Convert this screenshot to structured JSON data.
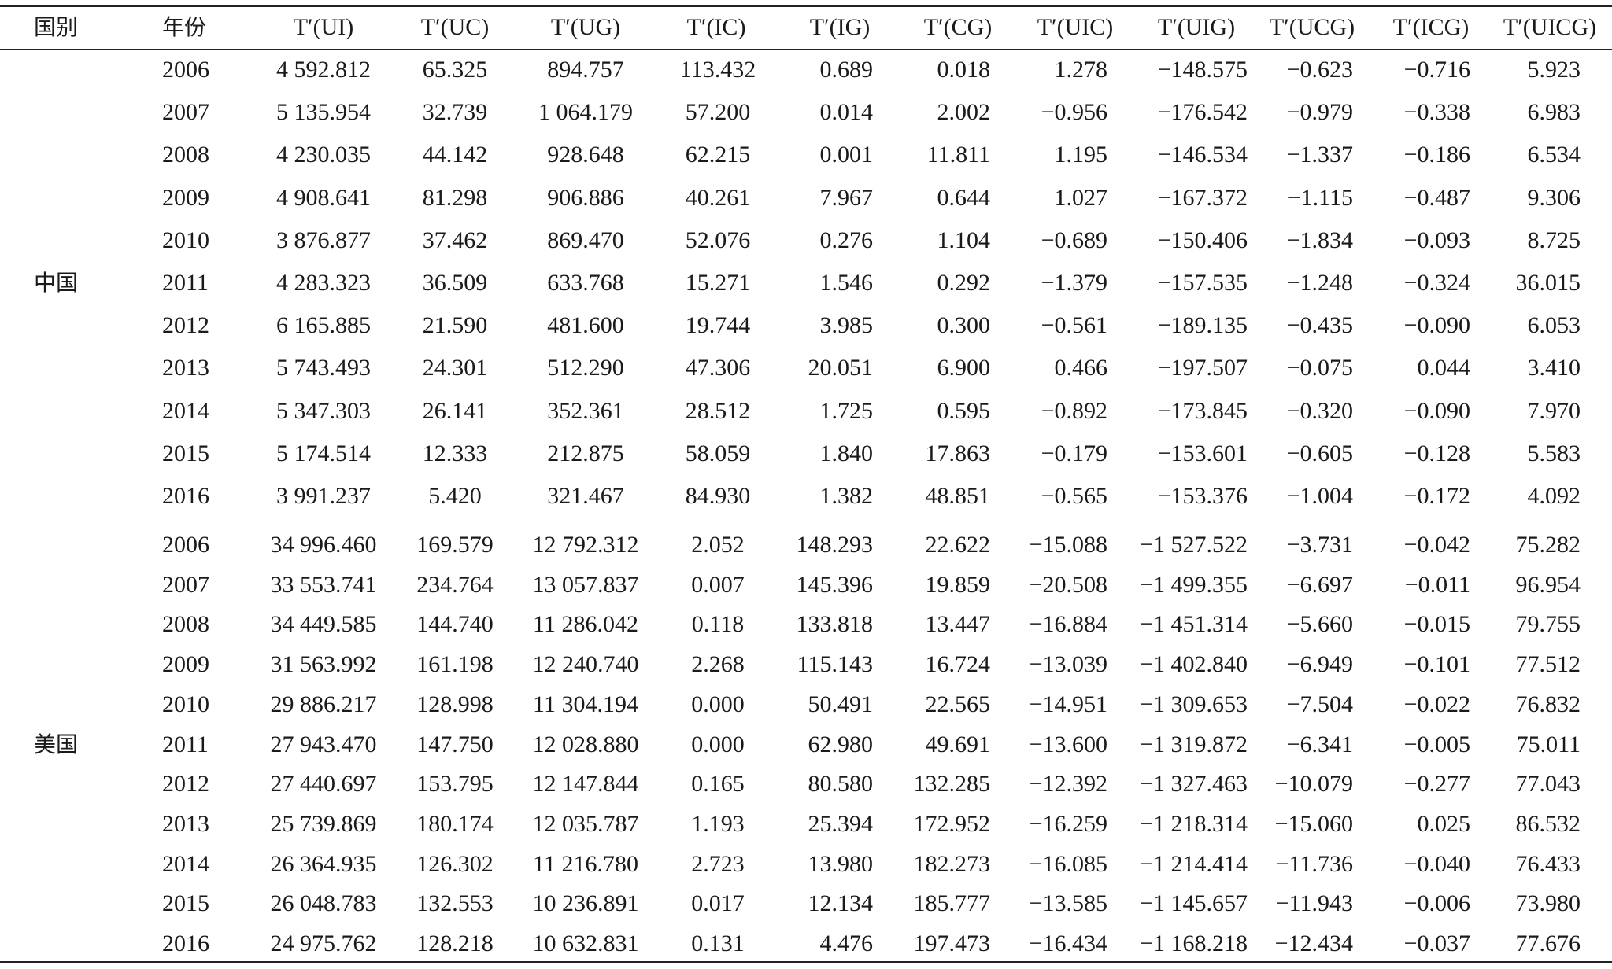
{
  "table": {
    "headers": [
      "国别",
      "年份",
      "T′(UI)",
      "T′(UC)",
      "T′(UG)",
      "T′(IC)",
      "T′(IG)",
      "T′(CG)",
      "T′(UIC)",
      "T′(UIG)",
      "T′(UCG)",
      "T′(ICG)",
      "T′(UICG)"
    ],
    "groups": [
      {
        "country": "中国",
        "rows": [
          [
            "2006",
            "4 592.812",
            "65.325",
            "894.757",
            "113.432",
            "0.689",
            "0.018",
            "1.278",
            "−148.575",
            "−0.623",
            "−0.716",
            "5.923"
          ],
          [
            "2007",
            "5 135.954",
            "32.739",
            "1 064.179",
            "57.200",
            "0.014",
            "2.002",
            "−0.956",
            "−176.542",
            "−0.979",
            "−0.338",
            "6.983"
          ],
          [
            "2008",
            "4 230.035",
            "44.142",
            "928.648",
            "62.215",
            "0.001",
            "11.811",
            "1.195",
            "−146.534",
            "−1.337",
            "−0.186",
            "6.534"
          ],
          [
            "2009",
            "4 908.641",
            "81.298",
            "906.886",
            "40.261",
            "7.967",
            "0.644",
            "1.027",
            "−167.372",
            "−1.115",
            "−0.487",
            "9.306"
          ],
          [
            "2010",
            "3 876.877",
            "37.462",
            "869.470",
            "52.076",
            "0.276",
            "1.104",
            "−0.689",
            "−150.406",
            "−1.834",
            "−0.093",
            "8.725"
          ],
          [
            "2011",
            "4 283.323",
            "36.509",
            "633.768",
            "15.271",
            "1.546",
            "0.292",
            "−1.379",
            "−157.535",
            "−1.248",
            "−0.324",
            "36.015"
          ],
          [
            "2012",
            "6 165.885",
            "21.590",
            "481.600",
            "19.744",
            "3.985",
            "0.300",
            "−0.561",
            "−189.135",
            "−0.435",
            "−0.090",
            "6.053"
          ],
          [
            "2013",
            "5 743.493",
            "24.301",
            "512.290",
            "47.306",
            "20.051",
            "6.900",
            "0.466",
            "−197.507",
            "−0.075",
            "0.044",
            "3.410"
          ],
          [
            "2014",
            "5 347.303",
            "26.141",
            "352.361",
            "28.512",
            "1.725",
            "0.595",
            "−0.892",
            "−173.845",
            "−0.320",
            "−0.090",
            "7.970"
          ],
          [
            "2015",
            "5 174.514",
            "12.333",
            "212.875",
            "58.059",
            "1.840",
            "17.863",
            "−0.179",
            "−153.601",
            "−0.605",
            "−0.128",
            "5.583"
          ],
          [
            "2016",
            "3 991.237",
            "5.420",
            "321.467",
            "84.930",
            "1.382",
            "48.851",
            "−0.565",
            "−153.376",
            "−1.004",
            "−0.172",
            "4.092"
          ]
        ]
      },
      {
        "country": "美国",
        "rows": [
          [
            "2006",
            "34 996.460",
            "169.579",
            "12 792.312",
            "2.052",
            "148.293",
            "22.622",
            "−15.088",
            "−1 527.522",
            "−3.731",
            "−0.042",
            "75.282"
          ],
          [
            "2007",
            "33 553.741",
            "234.764",
            "13 057.837",
            "0.007",
            "145.396",
            "19.859",
            "−20.508",
            "−1 499.355",
            "−6.697",
            "−0.011",
            "96.954"
          ],
          [
            "2008",
            "34 449.585",
            "144.740",
            "11 286.042",
            "0.118",
            "133.818",
            "13.447",
            "−16.884",
            "−1 451.314",
            "−5.660",
            "−0.015",
            "79.755"
          ],
          [
            "2009",
            "31 563.992",
            "161.198",
            "12 240.740",
            "2.268",
            "115.143",
            "16.724",
            "−13.039",
            "−1 402.840",
            "−6.949",
            "−0.101",
            "77.512"
          ],
          [
            "2010",
            "29 886.217",
            "128.998",
            "11 304.194",
            "0.000",
            "50.491",
            "22.565",
            "−14.951",
            "−1 309.653",
            "−7.504",
            "−0.022",
            "76.832"
          ],
          [
            "2011",
            "27 943.470",
            "147.750",
            "12 028.880",
            "0.000",
            "62.980",
            "49.691",
            "−13.600",
            "−1 319.872",
            "−6.341",
            "−0.005",
            "75.011"
          ],
          [
            "2012",
            "27 440.697",
            "153.795",
            "12 147.844",
            "0.165",
            "80.580",
            "132.285",
            "−12.392",
            "−1 327.463",
            "−10.079",
            "−0.277",
            "77.043"
          ],
          [
            "2013",
            "25 739.869",
            "180.174",
            "12 035.787",
            "1.193",
            "25.394",
            "172.952",
            "−16.259",
            "−1 218.314",
            "−15.060",
            "0.025",
            "86.532"
          ],
          [
            "2014",
            "26 364.935",
            "126.302",
            "11 216.780",
            "2.723",
            "13.980",
            "182.273",
            "−16.085",
            "−1 214.414",
            "−11.736",
            "−0.040",
            "76.433"
          ],
          [
            "2015",
            "26 048.783",
            "132.553",
            "10 236.891",
            "0.017",
            "12.134",
            "185.777",
            "−13.585",
            "−1 145.657",
            "−11.943",
            "−0.006",
            "73.980"
          ],
          [
            "2016",
            "24 975.762",
            "128.218",
            "10 632.831",
            "0.131",
            "4.476",
            "197.473",
            "−16.434",
            "−1 168.218",
            "−12.434",
            "−0.037",
            "77.676"
          ]
        ]
      }
    ]
  }
}
